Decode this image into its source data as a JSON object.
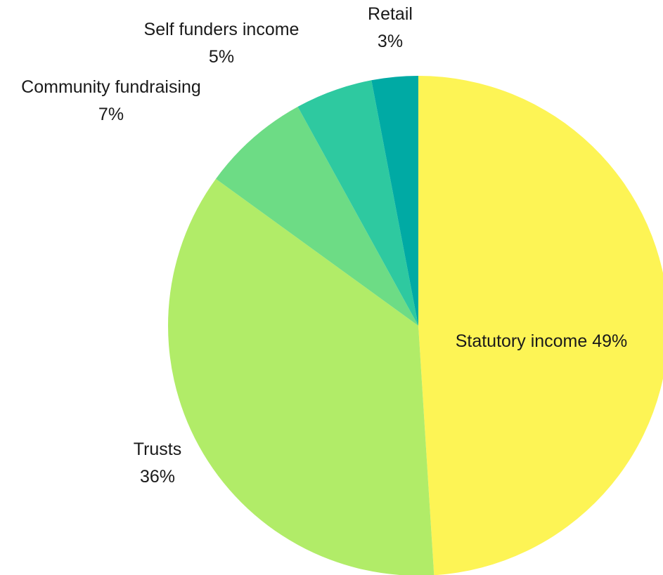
{
  "chart_data": {
    "type": "pie",
    "title": "",
    "start_angle_deg": 0,
    "direction": "clockwise",
    "slices": [
      {
        "name": "Statutory income",
        "value": 49,
        "value_label": "49%",
        "color": "#fdf455",
        "label_layout": "inline"
      },
      {
        "name": "Trusts",
        "value": 36,
        "value_label": "36%",
        "color": "#b1ec68",
        "label_layout": "stacked"
      },
      {
        "name": "Community fundraising",
        "value": 7,
        "value_label": "7%",
        "color": "#6ddc85",
        "label_layout": "stacked"
      },
      {
        "name": "Self funders income",
        "value": 5,
        "value_label": "5%",
        "color": "#2ec9a0",
        "label_layout": "stacked"
      },
      {
        "name": "Retail",
        "value": 3,
        "value_label": "3%",
        "color": "#00aaa4",
        "label_layout": "stacked"
      }
    ]
  }
}
